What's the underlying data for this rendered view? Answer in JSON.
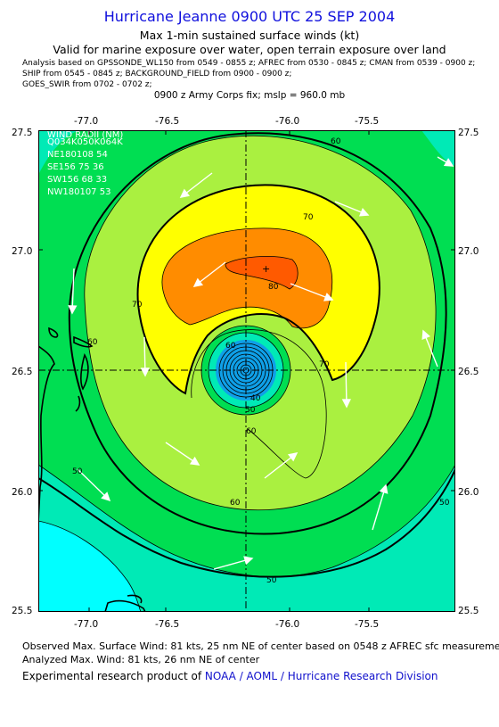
{
  "header": {
    "title": "Hurricane Jeanne 0900 UTC 25 SEP 2004",
    "subtitle": "Max 1-min sustained surface winds (kt)",
    "validity": "Valid for marine exposure over water, open terrain exposure over land",
    "analysis_lines": [
      "Analysis based on  GPSSONDE_WL150 from 0549 - 0855 z;  AFREC from 0530 - 0845 z;  CMAN from 0539 - 0900 z;",
      "SHIP from 0545 - 0845 z;  BACKGROUND_FIELD from 0900 - 0900 z;",
      "GOES_SWIR from 0702 - 0702 z;"
    ],
    "fix_line": "0900 z Army Corps fix; mslp = 960.0 mb"
  },
  "map": {
    "x_ticks": [
      "-77.0",
      "-76.5",
      "-76.0",
      "-75.5"
    ],
    "y_ticks": [
      "27.5",
      "27.0",
      "26.5",
      "26.0",
      "25.5"
    ],
    "contour_labels": [
      "40",
      "50",
      "50",
      "50",
      "50",
      "60",
      "60",
      "60",
      "60",
      "60",
      "70",
      "70",
      "70",
      "80"
    ],
    "wind_radii": {
      "title": "WIND RADII (NM)",
      "header": "Q034K050K064K",
      "rows": [
        "NE180108 54",
        "SE156 75 36",
        "SW156 68 33",
        "NW180107 53"
      ]
    },
    "center": {
      "lon": -76.2,
      "lat": 26.5
    },
    "colors": {
      "c30_40": "#00ffff",
      "c40_50": "#00eab6",
      "c50_60": "#00de52",
      "c60_70": "#aaf040",
      "c70_80": "#ffff00",
      "c80_90": "#ff8c00",
      "c90_100": "#ff5a00",
      "core": "#0fa0e8",
      "land": "#000000",
      "arrow": "#ffffff"
    }
  },
  "footer": {
    "observed": "Observed Max. Surface Wind: 81 kts, 25 nm NE of center based on 0548 z AFREC sfc measurement",
    "analyzed": "Analyzed Max. Wind: 81 kts, 26 nm NE of center",
    "product_prefix": "Experimental research product of ",
    "product_org": "NOAA / AOML / Hurricane Research Division"
  }
}
